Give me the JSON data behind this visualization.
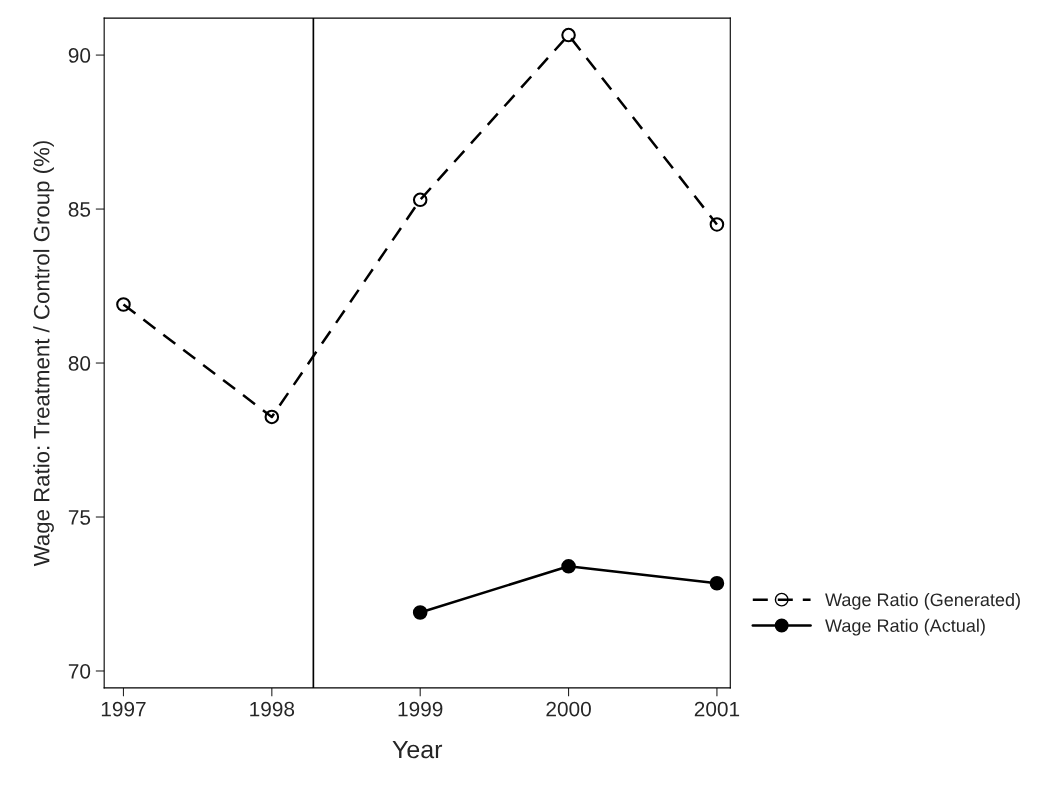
{
  "chart_data": {
    "type": "line",
    "xlabel": "Year",
    "ylabel": "Wage Ratio: Treatment / Control Group (%)",
    "x": [
      1997,
      1998,
      1999,
      2000,
      2001
    ],
    "series": [
      {
        "name": "Wage Ratio (Generated)",
        "color": "#000000",
        "line_style": "dashed",
        "marker": "circle",
        "values": [
          81.9,
          78.25,
          85.3,
          90.65,
          84.5
        ]
      },
      {
        "name": "Wage Ratio (Actual)",
        "color": "#000000",
        "line_style": "solid",
        "marker": "circle",
        "values": [
          null,
          null,
          71.9,
          73.4,
          72.85
        ]
      }
    ],
    "xlim": [
      1996.87,
      2001.09
    ],
    "xticks": [
      1997,
      1998,
      1999,
      2000,
      2001
    ],
    "ylim": [
      69.45,
      91.2
    ],
    "yticks": [
      70,
      75,
      80,
      85,
      90
    ],
    "ref_lines": [
      {
        "axis": "x",
        "value": 1998.28,
        "color": "#000000"
      }
    ],
    "grid": false,
    "legend": "right"
  }
}
